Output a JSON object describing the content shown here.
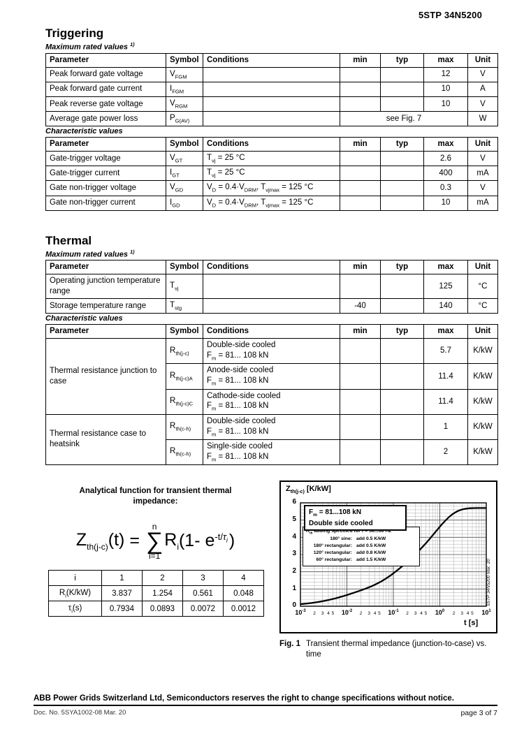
{
  "page": {
    "part_number": "5STP 34N5200"
  },
  "triggering": {
    "title": "Triggering",
    "max_label": "Maximum rated values ^1)^",
    "char_label": "Characteristic values",
    "columns": [
      "Parameter",
      "Symbol",
      "Conditions",
      "min",
      "typ",
      "max",
      "Unit"
    ],
    "max_rows": [
      {
        "p": "Peak forward gate voltage",
        "s": "V~FGM~",
        "c": "",
        "min": "",
        "typ": "",
        "max": "12",
        "u": "V"
      },
      {
        "p": "Peak forward gate current",
        "s": "I~FGM~",
        "c": "",
        "min": "",
        "typ": "",
        "max": "10",
        "u": "A"
      },
      {
        "p": "Peak reverse gate voltage",
        "s": "V~RGM~",
        "c": "",
        "min": "",
        "typ": "",
        "max": "10",
        "u": "V"
      },
      {
        "p": "Average gate power loss",
        "s": "P~G(AV)~",
        "c": "",
        "span": "see Fig. 7",
        "u": "W"
      }
    ],
    "char_rows": [
      {
        "p": "Gate-trigger voltage",
        "s": "V~GT~",
        "c": "T~vj~ = 25 °C",
        "min": "",
        "typ": "",
        "max": "2.6",
        "u": "V"
      },
      {
        "p": "Gate-trigger current",
        "s": "I~GT~",
        "c": "T~vj~ = 25 °C",
        "min": "",
        "typ": "",
        "max": "400",
        "u": "mA"
      },
      {
        "p": "Gate non-trigger voltage",
        "s": "V~GD~",
        "c": "V~D~ = 0.4·V~DRM~, T~vjmax~ = 125 °C",
        "min": "",
        "typ": "",
        "max": "0.3",
        "u": "V"
      },
      {
        "p": "Gate non-trigger current",
        "s": "I~GD~",
        "c": "V~D~ = 0.4·V~DRM~, T~vjmax~ = 125 °C",
        "min": "",
        "typ": "",
        "max": "10",
        "u": "mA"
      }
    ]
  },
  "thermal": {
    "title": "Thermal",
    "max_label": "Maximum rated values ^1)^",
    "char_label": "Characteristic values",
    "columns": [
      "Parameter",
      "Symbol",
      "Conditions",
      "min",
      "typ",
      "max",
      "Unit"
    ],
    "max_rows": [
      {
        "p": "Operating junction temperature range",
        "s": "T~vj~",
        "c": "",
        "min": "",
        "typ": "",
        "max": "125",
        "u": "°C"
      },
      {
        "p": "Storage temperature range",
        "s": "T~stg~",
        "c": "",
        "min": "-40",
        "typ": "",
        "max": "140",
        "u": "°C"
      }
    ],
    "char_groups": [
      {
        "p": "Thermal resistance junction to case",
        "rows": [
          {
            "s": "R~th(j-c)~",
            "c": "Double-side cooled\nF~m~ = 81... 108 kN",
            "min": "",
            "typ": "",
            "max": "5.7",
            "u": "K/kW"
          },
          {
            "s": "R~th(j-c)A~",
            "c": "Anode-side cooled\nF~m~ = 81... 108 kN",
            "min": "",
            "typ": "",
            "max": "11.4",
            "u": "K/kW"
          },
          {
            "s": "R~th(j-c)C~",
            "c": "Cathode-side cooled\nF~m~ = 81... 108 kN",
            "min": "",
            "typ": "",
            "max": "11.4",
            "u": "K/kW"
          }
        ]
      },
      {
        "p": "Thermal resistance case to heatsink",
        "rows": [
          {
            "s": "R~th(c-h)~",
            "c": "Double-side cooled\nF~m~ = 81... 108 kN",
            "min": "",
            "typ": "",
            "max": "1",
            "u": "K/kW"
          },
          {
            "s": "R~th(c-h)~",
            "c": "Single-side cooled\nF~m~ = 81... 108 kN",
            "min": "",
            "typ": "",
            "max": "2",
            "u": "K/kW"
          }
        ]
      }
    ]
  },
  "analytical": {
    "heading": "Analytical function for transient thermal impedance:",
    "formula": {
      "z_base": "Z",
      "z_sub": "th(j-c)",
      "z_arg": "(t)",
      "equals": "=",
      "sum_upper": "n",
      "sum_symbol": "∑",
      "sum_lower": "i=1",
      "r_base": "R",
      "r_sub": "i",
      "paren_open": "(1- e",
      "exp_prefix": "-t/",
      "exp_tau": "τ",
      "exp_tau_sub": "i",
      "paren_close": ")"
    },
    "table": {
      "rows": [
        {
          "label": "i",
          "values": [
            "1",
            "2",
            "3",
            "4"
          ]
        },
        {
          "label": "R~i~(K/kW)",
          "values": [
            "3.837",
            "1.254",
            "0.561",
            "0.048"
          ]
        },
        {
          "label": "τ~i~(s)",
          "values": [
            "0.7934",
            "0.0893",
            "0.0072",
            "0.0012"
          ]
        }
      ]
    }
  },
  "figure": {
    "label": "Fig. 1",
    "caption": "Transient thermal impedance (junction-to-case) vs. time"
  },
  "chart_data": {
    "type": "line",
    "title": "Transient thermal impedance (junction-to-case) vs. time",
    "ylabel": "Z~th(j-c)~ [K/kW]",
    "xlabel": "t [s]",
    "xscale": "log",
    "xlim": [
      0.001,
      10
    ],
    "ylim": [
      0,
      6
    ],
    "grid": "on",
    "y_ticks": [
      0,
      1,
      2,
      3,
      4,
      5,
      6
    ],
    "x_decade_ticks": [
      "10^-3^",
      "10^-2^",
      "10^-1^",
      "10^0^",
      "10^1^"
    ],
    "x_minor_tick_labels": [
      "2",
      "3",
      "4",
      "5"
    ],
    "box1_lines": [
      "F~m~ = 81...108 kN",
      "Double side cooled"
    ],
    "box2_title": "R~th~ adding specified for f = 50...60 Hz",
    "box2_rows": [
      [
        "180° sine:",
        "add 0.5 K/kW"
      ],
      [
        "180° rectangular:",
        "add 0.5 K/kW"
      ],
      [
        "120° rectangular:",
        "add 0.8 K/kW"
      ],
      [
        "60° rectangular:",
        "add 1.5 K/kW"
      ]
    ],
    "side_label": "5STP 34N5200 Mar. 20",
    "series": [
      {
        "name": "Z~th(j-c)~",
        "model": {
          "R": [
            3.837,
            1.254,
            0.561,
            0.048
          ],
          "tau": [
            0.7934,
            0.0893,
            0.0072,
            0.0012
          ]
        },
        "x": [
          0.001,
          0.002,
          0.005,
          0.01,
          0.02,
          0.05,
          0.1,
          0.2,
          0.5,
          1,
          2,
          5,
          10
        ],
        "y": [
          0.12,
          0.21,
          0.42,
          0.65,
          0.92,
          1.38,
          1.91,
          2.58,
          3.65,
          4.61,
          5.39,
          5.69,
          5.7
        ]
      }
    ]
  },
  "footer": {
    "notice": "ABB Power Grids Switzerland Ltd, Semiconductors reserves the right to change specifications without notice.",
    "doc_no": "Doc. No. 5SYA1002-08 Mar. 20",
    "page": "page 3 of 7"
  }
}
